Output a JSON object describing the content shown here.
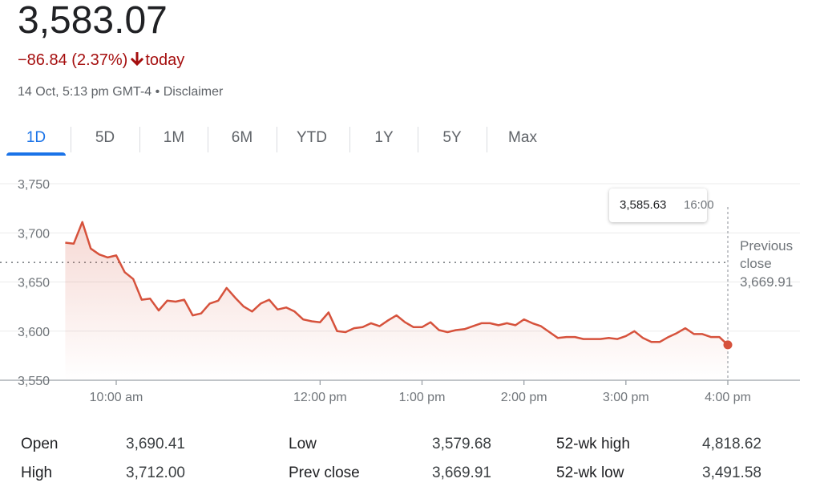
{
  "header": {
    "price": "3,583.07",
    "change": "−86.84 (2.37%)",
    "direction_icon": "arrow-down-icon",
    "period": "today",
    "timestamp": "14 Oct, 5:13 pm GMT-4",
    "separator": "•",
    "disclaimer": "Disclaimer"
  },
  "tabs": [
    {
      "label": "1D",
      "active": true
    },
    {
      "label": "5D",
      "active": false
    },
    {
      "label": "1M",
      "active": false
    },
    {
      "label": "6M",
      "active": false
    },
    {
      "label": "YTD",
      "active": false
    },
    {
      "label": "1Y",
      "active": false
    },
    {
      "label": "5Y",
      "active": false
    },
    {
      "label": "Max",
      "active": false
    }
  ],
  "tooltip": {
    "value": "3,585.63",
    "time": "16:00"
  },
  "previous_close": {
    "label_line1": "Previous",
    "label_line2": "close",
    "value": "3,669.91"
  },
  "colors": {
    "line": "#d6523c",
    "change": "#a50e0e",
    "accent": "#1a73e8"
  },
  "chart_data": {
    "type": "line",
    "ylim": [
      3550,
      3750
    ],
    "yticks": [
      3750,
      3700,
      3650,
      3600,
      3550
    ],
    "ytick_labels": [
      "3,750",
      "3,700",
      "3,650",
      "3,600",
      "3,550"
    ],
    "xlim": [
      9.5,
      16.7
    ],
    "xticks": [
      10,
      12,
      13,
      14,
      15,
      16
    ],
    "xtick_labels": [
      "10:00 am",
      "12:00 pm",
      "1:00 pm",
      "2:00 pm",
      "3:00 pm",
      "4:00 pm"
    ],
    "previous_close": 3669.91,
    "series": [
      {
        "x": [
          9.5,
          9.583,
          9.667,
          9.75,
          9.833,
          9.917,
          10.0,
          10.083,
          10.167,
          10.25,
          10.333,
          10.417,
          10.5,
          10.583,
          10.667,
          10.75,
          10.833,
          10.917,
          11.0,
          11.083,
          11.167,
          11.25,
          11.333,
          11.417,
          11.5,
          11.583,
          11.667,
          11.75,
          11.833,
          11.917,
          12.0,
          12.083,
          12.167,
          12.25,
          12.333,
          12.417,
          12.5,
          12.583,
          12.667,
          12.75,
          12.833,
          12.917,
          13.0,
          13.083,
          13.167,
          13.25,
          13.333,
          13.417,
          13.5,
          13.583,
          13.667,
          13.75,
          13.833,
          13.917,
          14.0,
          14.083,
          14.167,
          14.25,
          14.333,
          14.417,
          14.5,
          14.583,
          14.667,
          14.75,
          14.833,
          14.917,
          15.0,
          15.083,
          15.167,
          15.25,
          15.333,
          15.417,
          15.5,
          15.583,
          15.667,
          15.75,
          15.833,
          15.917,
          16.0
        ],
        "y": [
          3690,
          3689,
          3711,
          3684,
          3678,
          3675,
          3677,
          3660,
          3653,
          3632,
          3633,
          3621,
          3631,
          3630,
          3632,
          3616,
          3618,
          3628,
          3631,
          3644,
          3634,
          3625,
          3620,
          3628,
          3632,
          3622,
          3624,
          3620,
          3612,
          3610,
          3609,
          3619,
          3600,
          3599,
          3603,
          3604,
          3608,
          3605,
          3611,
          3616,
          3609,
          3604,
          3604,
          3609,
          3601,
          3599,
          3601,
          3602,
          3605,
          3608,
          3608,
          3606,
          3608,
          3606,
          3612,
          3608,
          3605,
          3599,
          3593,
          3594,
          3594,
          3592,
          3592,
          3592,
          3593,
          3592,
          3595,
          3600,
          3593,
          3589,
          3589,
          3594,
          3598,
          3603,
          3597,
          3597,
          3594,
          3594,
          3586
        ]
      }
    ]
  },
  "stats": [
    {
      "label": "Open",
      "value": "3,690.41"
    },
    {
      "label": "High",
      "value": "3,712.00"
    },
    {
      "label": "Low",
      "value": "3,579.68"
    },
    {
      "label": "Prev close",
      "value": "3,669.91"
    },
    {
      "label": "52-wk high",
      "value": "4,818.62"
    },
    {
      "label": "52-wk low",
      "value": "3,491.58"
    }
  ]
}
